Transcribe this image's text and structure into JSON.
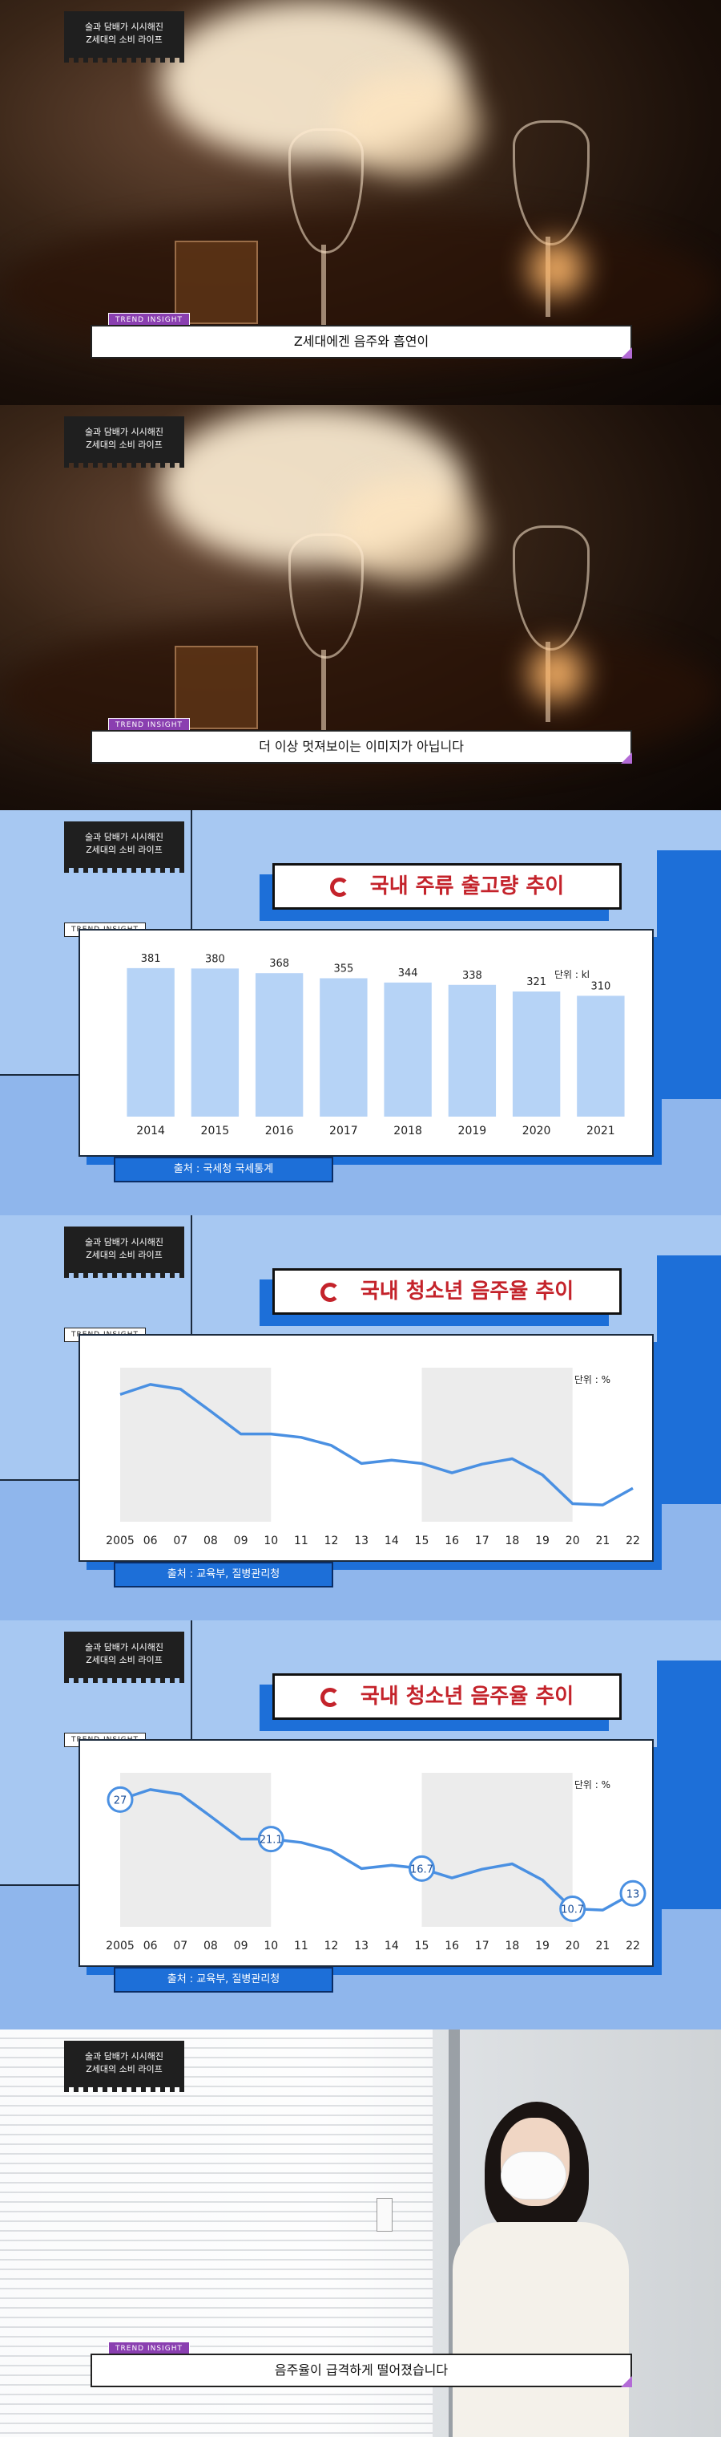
{
  "badge": {
    "line1": "술과 담배가 시시해진",
    "line2": "Z세대의 소비 라이프"
  },
  "tag": "TREND INSIGHT",
  "slides": [
    {
      "caption": "Z세대에겐 음주와 흡연이"
    },
    {
      "caption": "더 이상 멋져보이는 이미지가 아닙니다"
    },
    {
      "caption": "음주율이 급격하게 떨어졌습니다"
    }
  ],
  "chart1": {
    "title": "국내 주류 출고량 추이",
    "unit": "단위 : kl",
    "source": "출처 : 국세청 국세통계",
    "chart_data": {
      "type": "bar",
      "title": "국내 주류 출고량 추이",
      "categories": [
        "2014",
        "2015",
        "2016",
        "2017",
        "2018",
        "2019",
        "2020",
        "2021"
      ],
      "values": [
        381,
        380,
        368,
        355,
        344,
        338,
        321,
        310
      ],
      "value_labels": [
        "381",
        "380",
        "368",
        "355",
        "344",
        "338",
        "321",
        "310"
      ],
      "ylabel": "",
      "unit": "단위 : kl",
      "bar_color": "#b6d3f6"
    }
  },
  "chart2": {
    "title": "국내 청소년 음주율 추이",
    "unit": "단위 : %",
    "source": "출처 : 교육부, 질병관리청",
    "chart_data": {
      "type": "line",
      "title": "국내 청소년 음주율 추이",
      "x": [
        "2005",
        "06",
        "07",
        "08",
        "09",
        "10",
        "11",
        "12",
        "13",
        "14",
        "15",
        "16",
        "17",
        "18",
        "19",
        "20",
        "21",
        "22"
      ],
      "values": [
        27,
        28.5,
        27.8,
        24.5,
        21.1,
        21.1,
        20.6,
        19.4,
        16.7,
        17.2,
        16.7,
        15.3,
        16.6,
        17.4,
        15.0,
        10.7,
        10.5,
        13.0
      ],
      "ylim": [
        8,
        31
      ],
      "line_color": "#4a90e2"
    }
  },
  "chart3": {
    "title": "국내 청소년 음주율 추이",
    "unit": "단위 : %",
    "source": "출처 : 교육부, 질병관리청",
    "chart_data": {
      "type": "line",
      "title": "국내 청소년 음주율 추이",
      "x": [
        "2005",
        "06",
        "07",
        "08",
        "09",
        "10",
        "11",
        "12",
        "13",
        "14",
        "15",
        "16",
        "17",
        "18",
        "19",
        "20",
        "21",
        "22"
      ],
      "values": [
        27,
        28.5,
        27.8,
        24.5,
        21.1,
        21.1,
        20.6,
        19.4,
        16.7,
        17.2,
        16.7,
        15.3,
        16.6,
        17.4,
        15.0,
        10.7,
        10.5,
        13.0
      ],
      "ylim": [
        8,
        31
      ],
      "highlighted": [
        {
          "index": 0,
          "label": "27"
        },
        {
          "index": 5,
          "label": "21.1"
        },
        {
          "index": 10,
          "label": "16.7"
        },
        {
          "index": 15,
          "label": "10.7"
        },
        {
          "index": 17,
          "label": "13"
        }
      ],
      "line_color": "#4a90e2"
    }
  }
}
